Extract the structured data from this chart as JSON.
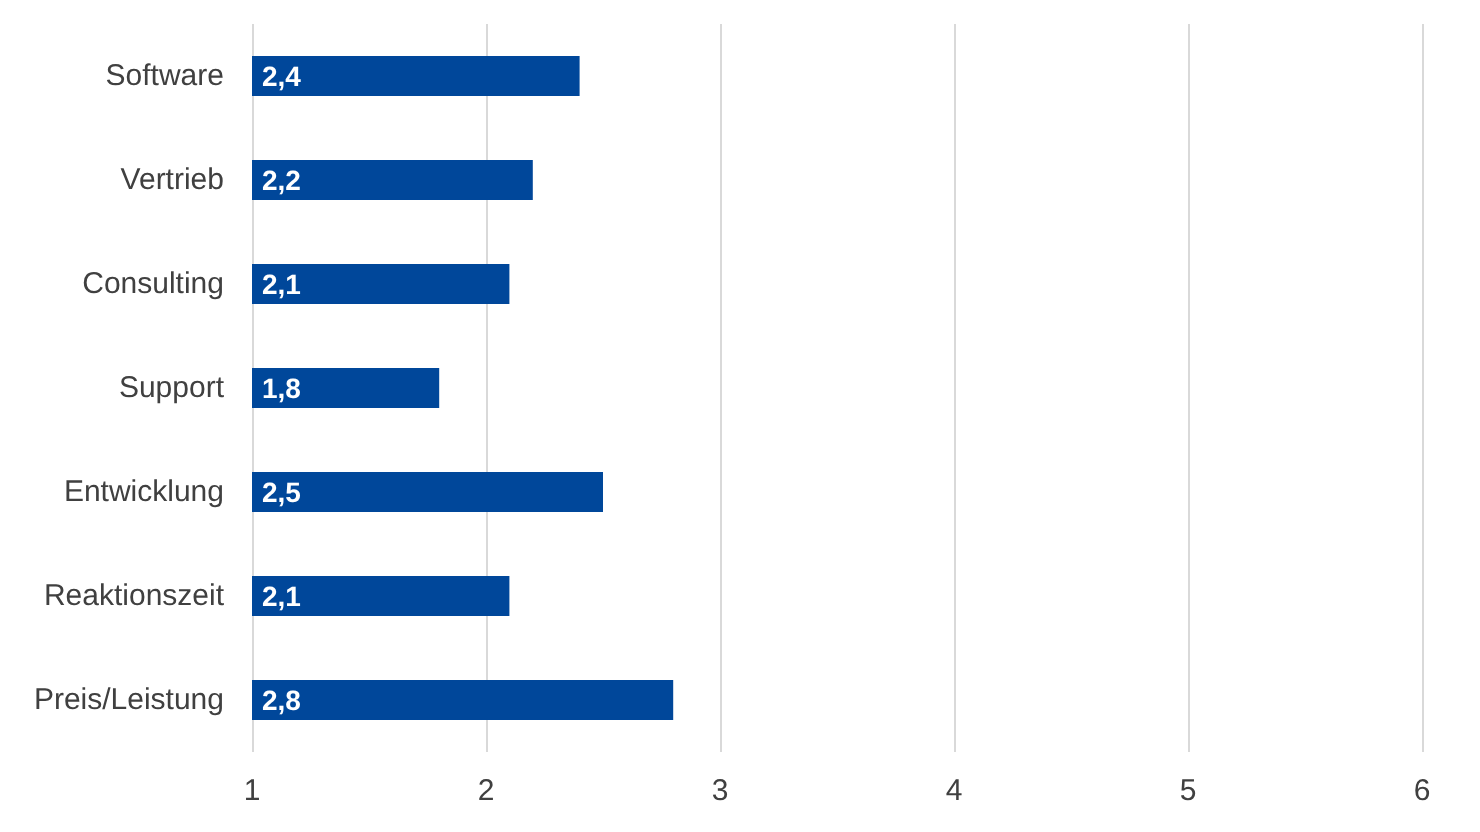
{
  "chart_data": {
    "type": "bar",
    "orientation": "horizontal",
    "categories": [
      "Software",
      "Vertrieb",
      "Consulting",
      "Support",
      "Entwicklung",
      "Reaktionszeit",
      "Preis/Leistung"
    ],
    "values": [
      2.4,
      2.2,
      2.1,
      1.8,
      2.5,
      2.1,
      2.8
    ],
    "value_labels": [
      "2,4",
      "2,2",
      "2,1",
      "1,8",
      "2,5",
      "2,1",
      "2,8"
    ],
    "color": "#00479a",
    "xlim": [
      1,
      6
    ],
    "xticks": [
      1,
      2,
      3,
      4,
      5,
      6
    ],
    "grid": "x"
  }
}
